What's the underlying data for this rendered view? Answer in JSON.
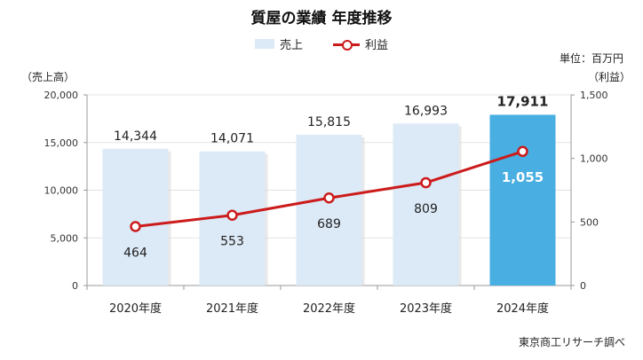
{
  "chart_data": {
    "type": "bar+line",
    "title": "質屋の業績 年度推移",
    "categories": [
      "2020年度",
      "2021年度",
      "2022年度",
      "2023年度",
      "2024年度"
    ],
    "series": [
      {
        "name": "売上",
        "type": "bar",
        "axis": "left",
        "values": [
          14344,
          14071,
          15815,
          16993,
          17911
        ]
      },
      {
        "name": "利益",
        "type": "line",
        "axis": "right",
        "values": [
          464,
          553,
          689,
          809,
          1055
        ]
      }
    ],
    "left_axis": {
      "label": "（売上高）",
      "range": [
        0,
        20000
      ],
      "ticks": [
        0,
        5000,
        10000,
        15000,
        20000
      ]
    },
    "right_axis": {
      "label": "（利益）",
      "range": [
        0,
        1500
      ],
      "ticks": [
        0,
        500,
        1000,
        1500
      ]
    },
    "unit_note": "単位：百万円",
    "source": "東京商工リサーチ調べ",
    "highlight_index": 4,
    "colors": {
      "bar": "#dce9f6",
      "bar_highlight": "#49aee1",
      "line": "#cc1b1b",
      "axis": "#999999",
      "grid": "#e3e3e3"
    },
    "grid": true,
    "legend_position": "top-center"
  }
}
